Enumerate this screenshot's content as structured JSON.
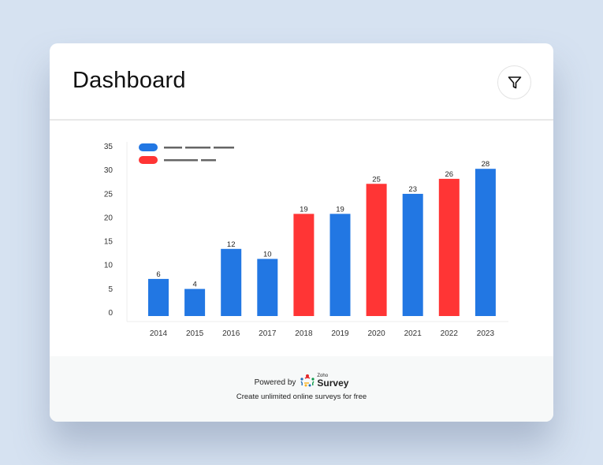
{
  "header": {
    "title": "Dashboard",
    "filter_button": {
      "icon": "filter-icon"
    }
  },
  "colors": {
    "series_a": "#2277E3",
    "series_b": "#FF3535",
    "legend_redacted": "#666666",
    "background": "#d6e2f1"
  },
  "legend": [
    {
      "color": "#2277E3",
      "label": ""
    },
    {
      "color": "#FF3535",
      "label": ""
    }
  ],
  "chart_data": {
    "type": "bar",
    "title": "",
    "xlabel": "",
    "ylabel": "",
    "categories": [
      "2014",
      "2015",
      "2016",
      "2017",
      "2018",
      "2019",
      "2020",
      "2021",
      "2022",
      "2023"
    ],
    "values": [
      6,
      4,
      12,
      10,
      19,
      19,
      25,
      23,
      26,
      28
    ],
    "bar_colors": [
      "#2277E3",
      "#2277E3",
      "#2277E3",
      "#2277E3",
      "#FF3535",
      "#2277E3",
      "#FF3535",
      "#2277E3",
      "#FF3535",
      "#2277E3"
    ],
    "series": [
      {
        "name": "(redacted legend 1)",
        "color": "#2277E3",
        "categories": [
          "2014",
          "2015",
          "2016",
          "2017",
          "2019",
          "2021",
          "2023"
        ],
        "values": [
          6,
          4,
          12,
          10,
          19,
          23,
          28
        ]
      },
      {
        "name": "(redacted legend 2)",
        "color": "#FF3535",
        "categories": [
          "2018",
          "2020",
          "2022"
        ],
        "values": [
          19,
          25,
          26
        ]
      }
    ],
    "yticks": [
      0,
      5,
      10,
      15,
      20,
      25,
      30,
      35
    ],
    "ylim": [
      0,
      35
    ],
    "grid": false,
    "legend_position": "top-left",
    "data_labels": true
  },
  "footer": {
    "powered_by": "Powered by",
    "brand_small": "Zoho",
    "brand_name": "Survey",
    "tagline": "Create unlimited online surveys for free"
  }
}
